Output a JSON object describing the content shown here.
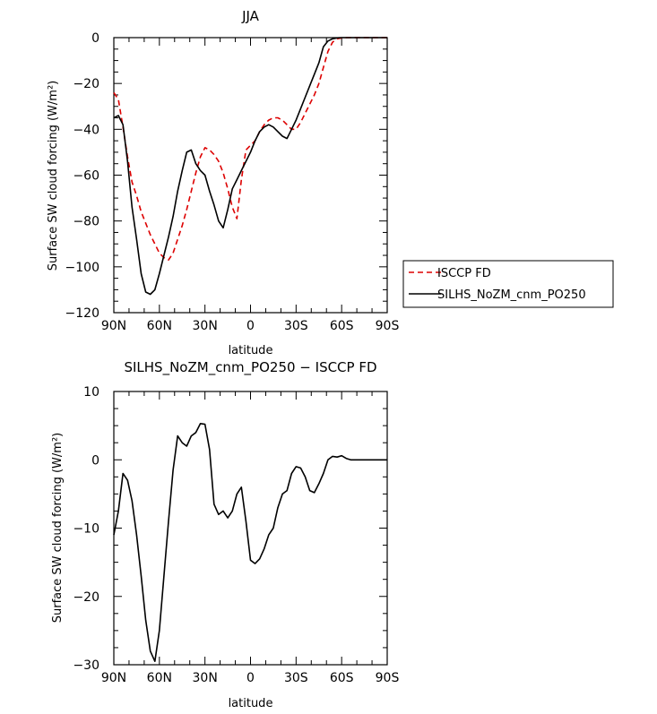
{
  "chart_data": [
    {
      "type": "line",
      "title": "JJA",
      "xlabel": "latitude",
      "ylabel": "Surface SW cloud forcing (W/m²)",
      "xlim": [
        -90,
        90
      ],
      "ylim": [
        -120,
        0
      ],
      "xticks": [
        -90,
        -60,
        -30,
        0,
        30,
        60,
        90
      ],
      "xtick_labels": [
        "90N",
        "60N",
        "30N",
        "0",
        "30S",
        "60S",
        "90S"
      ],
      "yticks": [
        0,
        -20,
        -40,
        -60,
        -80,
        -100,
        -120
      ],
      "ytick_labels": [
        "0",
        "−20",
        "−40",
        "−60",
        "−80",
        "−100",
        "−120"
      ],
      "legend_position": "outside-right",
      "series": [
        {
          "name": "ISCCP FD",
          "color": "#dd0000",
          "style": "dashed",
          "x": [
            -90,
            -87,
            -84,
            -81,
            -78,
            -75,
            -72,
            -69,
            -66,
            -63,
            -60,
            -57,
            -54,
            -51,
            -48,
            -45,
            -42,
            -39,
            -36,
            -33,
            -30,
            -27,
            -24,
            -21,
            -18,
            -15,
            -12,
            -9,
            -6,
            -3,
            0,
            3,
            6,
            9,
            12,
            15,
            18,
            21,
            24,
            27,
            30,
            33,
            36,
            39,
            42,
            45,
            48,
            51,
            54,
            57,
            60,
            63,
            66,
            69,
            72,
            75,
            78,
            81,
            84,
            87,
            90
          ],
          "y": [
            -24,
            -27,
            -39,
            -52,
            -63,
            -69,
            -76,
            -81,
            -86,
            -90,
            -94,
            -96,
            -97,
            -94,
            -88,
            -82,
            -75,
            -67,
            -59,
            -52,
            -48,
            -49,
            -51,
            -54,
            -59,
            -66,
            -74,
            -79,
            -62,
            -49,
            -47,
            -45,
            -41,
            -38,
            -36,
            -35,
            -35,
            -36,
            -38,
            -40,
            -40,
            -37,
            -33,
            -29,
            -25,
            -20,
            -13,
            -6,
            -2,
            -0.5,
            -0.1,
            0,
            0,
            0,
            0,
            0,
            0,
            0,
            0,
            0,
            0
          ]
        },
        {
          "name": "SILHS_NoZM_cnm_PO250",
          "color": "#000000",
          "style": "solid",
          "x": [
            -90,
            -87,
            -84,
            -81,
            -78,
            -75,
            -72,
            -69,
            -66,
            -63,
            -60,
            -57,
            -54,
            -51,
            -48,
            -45,
            -42,
            -39,
            -36,
            -33,
            -30,
            -27,
            -24,
            -21,
            -18,
            -15,
            -12,
            -9,
            -6,
            -3,
            0,
            3,
            6,
            9,
            12,
            15,
            18,
            21,
            24,
            27,
            30,
            33,
            36,
            39,
            42,
            45,
            48,
            51,
            54,
            57,
            60,
            63,
            66,
            69,
            72,
            75,
            78,
            81,
            84,
            87,
            90
          ],
          "y": [
            -35,
            -34,
            -38,
            -54,
            -74,
            -88,
            -103,
            -111,
            -112,
            -110,
            -103,
            -95,
            -87,
            -78,
            -67,
            -58,
            -50,
            -49,
            -55,
            -58,
            -60,
            -67,
            -73,
            -80,
            -83,
            -75,
            -66,
            -62,
            -58,
            -54,
            -50,
            -45,
            -41,
            -39,
            -38,
            -39,
            -41,
            -43,
            -44,
            -40,
            -36,
            -31,
            -26,
            -21,
            -16,
            -11,
            -4,
            -1.5,
            -0.5,
            -0.1,
            0,
            0,
            0,
            0,
            0,
            0,
            0,
            0,
            0,
            0,
            0
          ]
        }
      ]
    },
    {
      "type": "line",
      "title": "SILHS_NoZM_cnm_PO250 − ISCCP FD",
      "xlabel": "latitude",
      "ylabel": "Surface SW cloud forcing (W/m²)",
      "xlim": [
        -90,
        90
      ],
      "ylim": [
        -30,
        10
      ],
      "xticks": [
        -90,
        -60,
        -30,
        0,
        30,
        60,
        90
      ],
      "xtick_labels": [
        "90N",
        "60N",
        "30N",
        "0",
        "30S",
        "60S",
        "90S"
      ],
      "yticks": [
        10,
        0,
        -10,
        -20,
        -30
      ],
      "ytick_labels": [
        "10",
        "0",
        "−10",
        "−20",
        "−30"
      ],
      "series": [
        {
          "color": "#000000",
          "style": "solid",
          "x": [
            -90,
            -87,
            -84,
            -81,
            -78,
            -75,
            -72,
            -69,
            -66,
            -63,
            -60,
            -57,
            -54,
            -51,
            -48,
            -45,
            -42,
            -39,
            -36,
            -33,
            -30,
            -27,
            -24,
            -21,
            -18,
            -15,
            -12,
            -9,
            -6,
            -3,
            0,
            3,
            6,
            9,
            12,
            15,
            18,
            21,
            24,
            27,
            30,
            33,
            36,
            39,
            42,
            45,
            48,
            51,
            54,
            57,
            60,
            63,
            66,
            69,
            72,
            75,
            78,
            81,
            84,
            87,
            90
          ],
          "y": [
            -11,
            -7.5,
            -2,
            -3,
            -6,
            -11,
            -17,
            -23.5,
            -28,
            -29.5,
            -25,
            -17,
            -9,
            -1.5,
            3.5,
            2.5,
            2,
            3.5,
            4,
            5.3,
            5.2,
            1.5,
            -6.5,
            -8,
            -7.5,
            -8.5,
            -7.5,
            -5,
            -4,
            -9,
            -14.7,
            -15.2,
            -14.5,
            -13,
            -11,
            -10,
            -7,
            -5,
            -4.5,
            -2,
            -1,
            -1.2,
            -2.5,
            -4.5,
            -4.8,
            -3.5,
            -2,
            0,
            0.5,
            0.4,
            0.6,
            0.2,
            0,
            0,
            0,
            0,
            0,
            0,
            0,
            0,
            0
          ]
        }
      ]
    }
  ]
}
